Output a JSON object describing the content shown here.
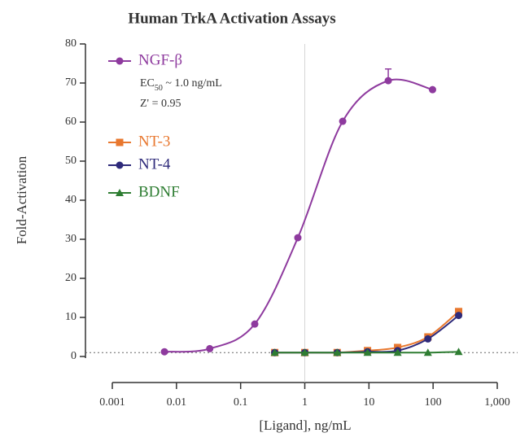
{
  "chart_data": {
    "type": "line",
    "title": "Human TrkA Activation Assays",
    "x_label": "[Ligand], ng/mL",
    "y_label": "Fold-Activation",
    "log_x": true,
    "xlim": [
      0.001,
      1000
    ],
    "xticks": [
      0.001,
      0.01,
      0.1,
      1,
      10,
      100,
      {
        "value": 1000,
        "label": "1,000"
      }
    ],
    "ylim": [
      0,
      80
    ],
    "yticks": [
      0,
      10,
      20,
      30,
      40,
      50,
      60,
      70,
      80
    ],
    "hline": 1,
    "vline": 1,
    "legend": "top-left",
    "series": [
      {
        "name": "NGF-β",
        "color": "#8e3a9e",
        "x": [
          0.0065,
          0.033,
          0.166,
          0.78,
          3.9,
          20,
          98
        ],
        "values": [
          1.2,
          2,
          8.3,
          30.4,
          60.2,
          70.6,
          68.3
        ],
        "errors": [
          null,
          null,
          null,
          null,
          null,
          3,
          null
        ]
      },
      {
        "name": "NT-3",
        "color": "#e8772e",
        "x": [
          0.34,
          1,
          3.2,
          9.5,
          28,
          83,
          250
        ],
        "values": [
          1,
          1,
          1,
          1.5,
          2.3,
          5,
          11.5
        ]
      },
      {
        "name": "NT-4",
        "color": "#2e2a7a",
        "x": [
          0.34,
          1,
          3.2,
          9.5,
          28,
          83,
          250
        ],
        "values": [
          1,
          1,
          1,
          1.2,
          1.5,
          4.5,
          10.5
        ]
      },
      {
        "name": "BDNF",
        "color": "#2e7d32",
        "x": [
          0.34,
          1,
          3.2,
          9.5,
          28,
          83,
          250
        ],
        "values": [
          1,
          1,
          1,
          1,
          1,
          1,
          1.2
        ]
      }
    ],
    "annotations": [
      {
        "main": "EC",
        "sub": "50",
        "rest": " ~ 1.0 ng/mL"
      },
      {
        "main": "Z' = 0.95"
      }
    ]
  }
}
